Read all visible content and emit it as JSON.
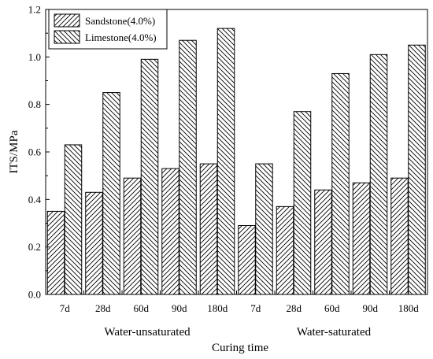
{
  "chart_data": {
    "type": "bar",
    "title": "",
    "xlabel": "Curing time",
    "ylabel": "ITS/MPa",
    "ylim": [
      0,
      1.2
    ],
    "yticks": [
      "0.0",
      "0.2",
      "0.4",
      "0.6",
      "0.8",
      "1.0",
      "1.2"
    ],
    "categories": [
      "7d",
      "28d",
      "60d",
      "90d",
      "180d",
      "7d",
      "28d",
      "60d",
      "90d",
      "180d"
    ],
    "groups": [
      {
        "label": "Water-unsaturated",
        "categories": [
          "7d",
          "28d",
          "60d",
          "90d",
          "180d"
        ]
      },
      {
        "label": "Water-saturated",
        "categories": [
          "7d",
          "28d",
          "60d",
          "90d",
          "180d"
        ]
      }
    ],
    "series": [
      {
        "name": "Sandstone(4.0%)",
        "pattern": "hatch-forward",
        "values": [
          0.35,
          0.43,
          0.49,
          0.53,
          0.55,
          0.29,
          0.37,
          0.44,
          0.47,
          0.49
        ]
      },
      {
        "name": "Limestone(4.0%)",
        "pattern": "hatch-backward",
        "values": [
          0.63,
          0.85,
          0.99,
          1.07,
          1.12,
          0.55,
          0.77,
          0.93,
          1.01,
          1.05
        ]
      }
    ],
    "legend_position": "top-left",
    "grid": false,
    "colors": {
      "bar_fill": "#ffffff",
      "stroke": "#000000"
    }
  }
}
